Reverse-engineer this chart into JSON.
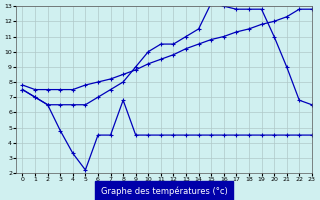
{
  "background_color": "#d0f0f0",
  "grid_color": "#b0c8c8",
  "line_color": "#0000bb",
  "xlabel": "Graphe des températures (°c)",
  "xlabel_color": "#ffffff",
  "xlabel_bg": "#0000aa",
  "xlim": [
    -0.5,
    23
  ],
  "ylim": [
    2,
    13
  ],
  "yticks": [
    2,
    3,
    4,
    5,
    6,
    7,
    8,
    9,
    10,
    11,
    12,
    13
  ],
  "xticks": [
    0,
    1,
    2,
    3,
    4,
    5,
    6,
    7,
    8,
    9,
    10,
    11,
    12,
    13,
    14,
    15,
    16,
    17,
    18,
    19,
    20,
    21,
    22,
    23
  ],
  "s1_x": [
    0,
    1,
    2,
    3,
    4,
    5,
    6,
    7,
    8,
    9,
    10,
    11,
    12,
    13,
    14,
    15,
    16,
    17,
    18,
    19,
    20,
    21,
    22,
    23
  ],
  "s1_y": [
    7.8,
    7.5,
    7.5,
    7.5,
    7.5,
    7.8,
    8.0,
    8.2,
    8.5,
    8.8,
    9.2,
    9.5,
    9.8,
    10.2,
    10.5,
    10.8,
    11.0,
    11.3,
    11.5,
    11.8,
    12.0,
    12.3,
    12.8,
    12.8
  ],
  "s2_x": [
    0,
    1,
    2,
    3,
    4,
    5,
    6,
    7,
    8,
    9,
    10,
    11,
    12,
    13,
    14,
    15,
    16,
    17,
    18,
    19,
    20,
    21,
    22,
    23
  ],
  "s2_y": [
    7.5,
    7.0,
    6.5,
    6.5,
    6.5,
    6.5,
    7.0,
    7.5,
    8.0,
    9.0,
    10.0,
    10.5,
    10.5,
    11.0,
    11.5,
    13.2,
    13.0,
    12.8,
    12.8,
    12.8,
    11.0,
    9.0,
    6.8,
    6.5
  ],
  "s3_x": [
    0,
    1,
    2,
    3,
    4,
    5,
    6,
    7,
    8,
    9,
    10,
    11,
    12,
    13,
    14,
    15,
    16,
    17,
    18,
    19,
    20,
    21,
    22,
    23
  ],
  "s3_y": [
    7.5,
    7.0,
    6.5,
    4.8,
    3.3,
    2.2,
    4.5,
    4.5,
    6.8,
    4.5,
    4.5,
    4.5,
    4.5,
    4.5,
    4.5,
    4.5,
    4.5,
    4.5,
    4.5,
    4.5,
    4.5,
    4.5,
    4.5,
    4.5
  ]
}
